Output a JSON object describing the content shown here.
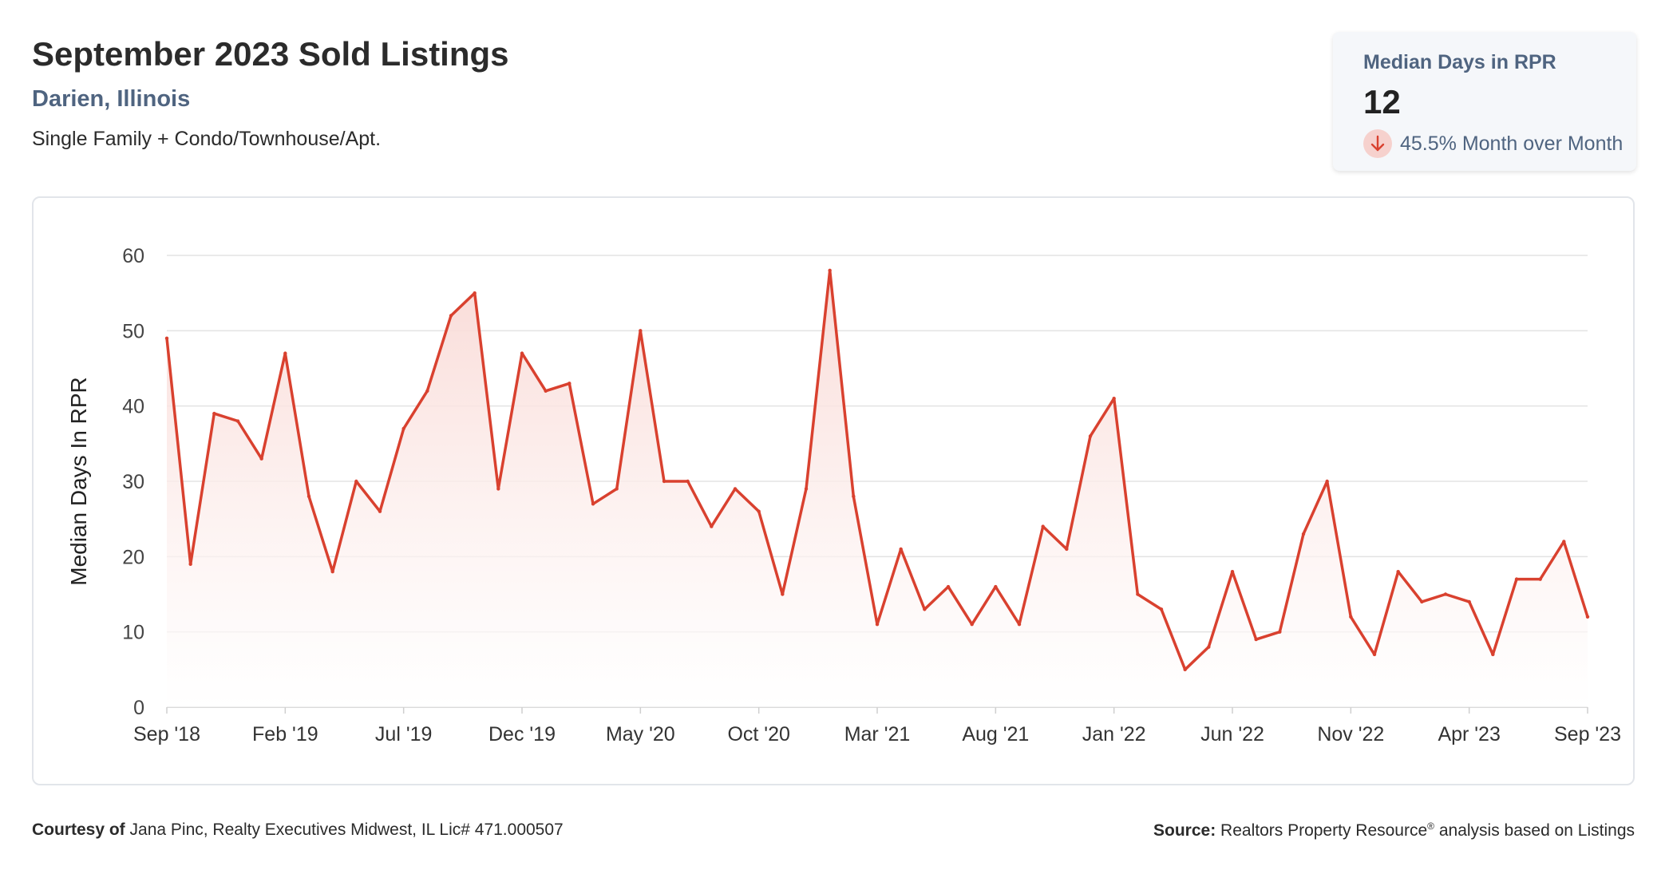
{
  "header": {
    "title": "September 2023 Sold Listings",
    "location": "Darien, Illinois",
    "property_type": "Single Family + Condo/Townhouse/Apt."
  },
  "stat_card": {
    "label": "Median Days in RPR",
    "value": "12",
    "change_text": "45.5% Month over Month",
    "change_direction": "down",
    "change_icon": "arrow-down-icon",
    "change_color": "#d9412f"
  },
  "footer": {
    "courtesy_label": "Courtesy of",
    "courtesy_text": "Jana Pinc, Realty Executives Midwest, IL Lic# 471.000507",
    "source_label": "Source:",
    "source_text_1": "Realtors Property Resource",
    "source_mark": "®",
    "source_text_2": "analysis based on Listings"
  },
  "colors": {
    "line": "#d9412f",
    "fill_top": "#f9d9d5",
    "grid": "#e3e3e3",
    "accent_text": "#4f6480"
  },
  "chart_data": {
    "type": "area",
    "title": "",
    "xlabel": "",
    "ylabel": "Median Days In RPR",
    "ylim": [
      0,
      60
    ],
    "yticks": [
      0,
      10,
      20,
      30,
      40,
      50,
      60
    ],
    "grid": true,
    "legend": "none",
    "x": [
      "Sep '18",
      "Oct '18",
      "Nov '18",
      "Dec '18",
      "Jan '19",
      "Feb '19",
      "Mar '19",
      "Apr '19",
      "May '19",
      "Jun '19",
      "Jul '19",
      "Aug '19",
      "Sep '19",
      "Oct '19",
      "Nov '19",
      "Dec '19",
      "Jan '20",
      "Feb '20",
      "Mar '20",
      "Apr '20",
      "May '20",
      "Jun '20",
      "Jul '20",
      "Aug '20",
      "Sep '20",
      "Oct '20",
      "Nov '20",
      "Dec '20",
      "Jan '21",
      "Feb '21",
      "Mar '21",
      "Apr '21",
      "May '21",
      "Jun '21",
      "Jul '21",
      "Aug '21",
      "Sep '21",
      "Oct '21",
      "Nov '21",
      "Dec '21",
      "Jan '22",
      "Feb '22",
      "Mar '22",
      "Apr '22",
      "May '22",
      "Jun '22",
      "Jul '22",
      "Aug '22",
      "Sep '22",
      "Oct '22",
      "Nov '22",
      "Dec '22",
      "Jan '23",
      "Feb '23",
      "Mar '23",
      "Apr '23",
      "May '23",
      "Jun '23",
      "Jul '23",
      "Aug '23",
      "Sep '23"
    ],
    "xtick_labels": [
      "Sep '18",
      "Feb '19",
      "Jul '19",
      "Dec '19",
      "May '20",
      "Oct '20",
      "Mar '21",
      "Aug '21",
      "Jan '22",
      "Jun '22",
      "Nov '22",
      "Apr '23",
      "Sep '23"
    ],
    "xtick_every": 5,
    "series": [
      {
        "values": [
          49,
          19,
          39,
          38,
          33,
          47,
          28,
          18,
          30,
          26,
          37,
          42,
          52,
          55,
          29,
          47,
          42,
          43,
          27,
          29,
          50,
          30,
          30,
          24,
          29,
          26,
          15,
          29,
          58,
          28,
          11,
          21,
          13,
          16,
          11,
          16,
          11,
          24,
          21,
          36,
          41,
          15,
          13,
          5,
          8,
          18,
          9,
          10,
          23,
          30,
          12,
          7,
          18,
          14,
          15,
          14,
          7,
          17,
          17,
          22,
          12
        ]
      }
    ]
  }
}
